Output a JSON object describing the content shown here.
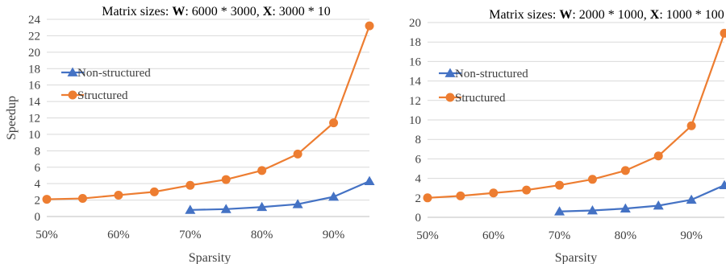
{
  "chart_data": [
    {
      "type": "line",
      "title": [
        {
          "text": "Matrix sizes: ",
          "bold": false
        },
        {
          "text": "W",
          "bold": true
        },
        {
          "text": ": 6000 * 3000, ",
          "bold": false
        },
        {
          "text": "X",
          "bold": true
        },
        {
          "text": ": 3000 * 10",
          "bold": false
        }
      ],
      "xlabel": "Sparsity",
      "ylabel": "Speedup",
      "x_ticks": [
        "50%",
        "60%",
        "70%",
        "80%",
        "90%"
      ],
      "x_tick_values": [
        50,
        60,
        70,
        80,
        90
      ],
      "xlim": [
        50,
        95
      ],
      "ylim": [
        0,
        24
      ],
      "y_ticks": [
        0,
        2,
        4,
        6,
        8,
        10,
        12,
        14,
        16,
        18,
        20,
        22,
        24
      ],
      "grid": "horizontal",
      "legend_position": "upper-left",
      "series": [
        {
          "name": "Non-structured",
          "color": "#4472C4",
          "marker": "triangle",
          "x": [
            70,
            75,
            80,
            85,
            90,
            95
          ],
          "y": [
            0.8,
            0.9,
            1.15,
            1.5,
            2.4,
            4.3
          ]
        },
        {
          "name": "Structured",
          "color": "#ED7D31",
          "marker": "circle",
          "x": [
            50,
            55,
            60,
            65,
            70,
            75,
            80,
            85,
            90,
            95
          ],
          "y": [
            2.1,
            2.2,
            2.6,
            3.0,
            3.8,
            4.5,
            5.6,
            7.6,
            11.4,
            23.2
          ]
        }
      ]
    },
    {
      "type": "line",
      "title": [
        {
          "text": "Matrix sizes: ",
          "bold": false
        },
        {
          "text": "W",
          "bold": true
        },
        {
          "text": ": 2000 * 1000, ",
          "bold": false
        },
        {
          "text": "X",
          "bold": true
        },
        {
          "text": ": 1000 * 100",
          "bold": false
        }
      ],
      "xlabel": "Sparsity",
      "ylabel": "",
      "x_ticks": [
        "50%",
        "60%",
        "70%",
        "80%",
        "90%"
      ],
      "x_tick_values": [
        50,
        60,
        70,
        80,
        90
      ],
      "xlim": [
        50,
        95
      ],
      "ylim": [
        0,
        20
      ],
      "y_ticks": [
        0,
        2,
        4,
        6,
        8,
        10,
        12,
        14,
        16,
        18,
        20
      ],
      "grid": "horizontal",
      "legend_position": "upper-left",
      "series": [
        {
          "name": "Non-structured",
          "color": "#4472C4",
          "marker": "triangle",
          "x": [
            70,
            75,
            80,
            85,
            90,
            95
          ],
          "y": [
            0.6,
            0.7,
            0.9,
            1.2,
            1.8,
            3.3
          ]
        },
        {
          "name": "Structured",
          "color": "#ED7D31",
          "marker": "circle",
          "x": [
            50,
            55,
            60,
            65,
            70,
            75,
            80,
            85,
            90,
            95
          ],
          "y": [
            2.0,
            2.2,
            2.5,
            2.8,
            3.3,
            3.9,
            4.8,
            6.3,
            9.4,
            18.9
          ]
        }
      ]
    }
  ]
}
